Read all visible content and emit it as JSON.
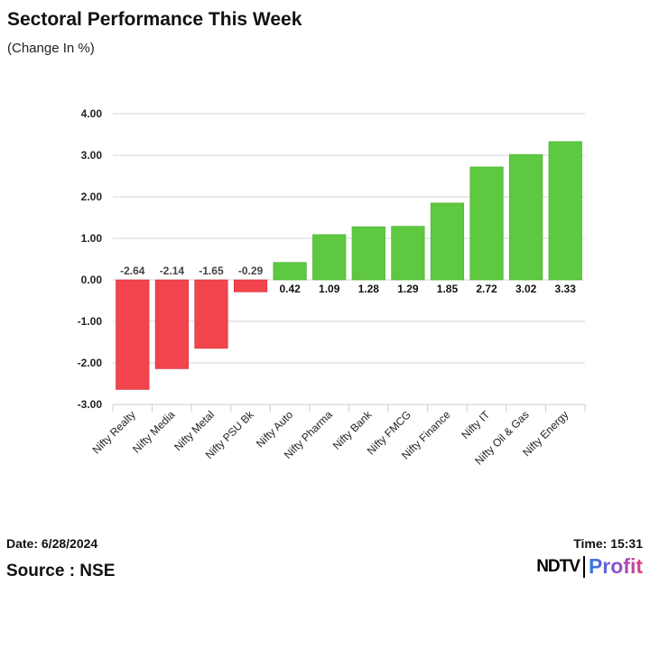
{
  "header": {
    "title": "Sectoral Performance This Week",
    "subtitle": "(Change In %)"
  },
  "footer": {
    "date": "Date: 6/28/2024",
    "source": "Source : NSE",
    "time": "Time: 15:31",
    "logo_text": "NDTV Profit"
  },
  "chart_data": {
    "type": "bar",
    "title": "Sectoral Performance This Week",
    "subtitle": "(Change In %)",
    "categories": [
      "Nifty Realty",
      "Nifty Media",
      "Nifty Metal",
      "Nifty PSU Bk",
      "Nifty Auto",
      "Nifty Pharma",
      "Nifty Bank",
      "Nifty FMCG",
      "Nifty Finance",
      "Nifty IT",
      "Nifty Oil & Gas",
      "Nifty Energy"
    ],
    "values": [
      -2.64,
      -2.14,
      -1.65,
      -0.29,
      0.42,
      1.09,
      1.28,
      1.29,
      1.85,
      2.72,
      3.02,
      3.33
    ],
    "data_labels": [
      "-2.64",
      "-2.14",
      "-1.65",
      "-0.29",
      "0.42",
      "1.09",
      "1.28",
      "1.29",
      "1.85",
      "2.72",
      "3.02",
      "3.33"
    ],
    "ylim": [
      -3,
      4
    ],
    "yticks": [
      "-3.00",
      "-2.00",
      "-1.00",
      "0.00",
      "1.00",
      "2.00",
      "3.00",
      "4.00"
    ],
    "grid": true,
    "colors": {
      "negative": "#f2444c",
      "positive": "#5dc840"
    }
  }
}
